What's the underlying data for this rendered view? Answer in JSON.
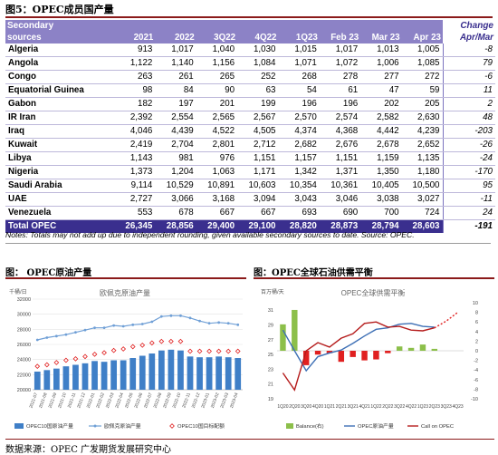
{
  "figure5_title": "图5：OPEC成员国产量",
  "table": {
    "header": {
      "secondary": "Secondary",
      "sources": "sources",
      "change": "Change",
      "change_sub": "Apr/Mar",
      "cols": [
        "2021",
        "2022",
        "3Q22",
        "4Q22",
        "1Q23",
        "Feb 23",
        "Mar 23",
        "Apr 23"
      ]
    },
    "rows": [
      {
        "name": "Algeria",
        "values": [
          "913",
          "1,017",
          "1,040",
          "1,030",
          "1,015",
          "1,017",
          "1,013",
          "1,005"
        ],
        "change": "-8"
      },
      {
        "name": "Angola",
        "values": [
          "1,122",
          "1,140",
          "1,156",
          "1,084",
          "1,071",
          "1,072",
          "1,006",
          "1,085"
        ],
        "change": "79"
      },
      {
        "name": "Congo",
        "values": [
          "263",
          "261",
          "265",
          "252",
          "268",
          "278",
          "277",
          "272"
        ],
        "change": "-6"
      },
      {
        "name": "Equatorial Guinea",
        "values": [
          "98",
          "84",
          "90",
          "63",
          "54",
          "61",
          "47",
          "59"
        ],
        "change": "11"
      },
      {
        "name": "Gabon",
        "values": [
          "182",
          "197",
          "201",
          "199",
          "196",
          "196",
          "202",
          "205"
        ],
        "change": "2"
      },
      {
        "name": "IR Iran",
        "values": [
          "2,392",
          "2,554",
          "2,565",
          "2,567",
          "2,570",
          "2,574",
          "2,582",
          "2,630"
        ],
        "change": "48"
      },
      {
        "name": "Iraq",
        "values": [
          "4,046",
          "4,439",
          "4,522",
          "4,505",
          "4,374",
          "4,368",
          "4,442",
          "4,239"
        ],
        "change": "-203"
      },
      {
        "name": "Kuwait",
        "values": [
          "2,419",
          "2,704",
          "2,801",
          "2,712",
          "2,682",
          "2,676",
          "2,678",
          "2,652"
        ],
        "change": "-26"
      },
      {
        "name": "Libya",
        "values": [
          "1,143",
          "981",
          "976",
          "1,151",
          "1,157",
          "1,151",
          "1,159",
          "1,135"
        ],
        "change": "-24"
      },
      {
        "name": "Nigeria",
        "values": [
          "1,373",
          "1,204",
          "1,063",
          "1,171",
          "1,342",
          "1,371",
          "1,350",
          "1,180"
        ],
        "change": "-170"
      },
      {
        "name": "Saudi Arabia",
        "values": [
          "9,114",
          "10,529",
          "10,891",
          "10,603",
          "10,354",
          "10,361",
          "10,405",
          "10,500"
        ],
        "change": "95"
      },
      {
        "name": "UAE",
        "values": [
          "2,727",
          "3,066",
          "3,168",
          "3,094",
          "3,043",
          "3,046",
          "3,038",
          "3,027"
        ],
        "change": "-11"
      },
      {
        "name": "Venezuela",
        "values": [
          "553",
          "678",
          "667",
          "667",
          "693",
          "690",
          "700",
          "724"
        ],
        "change": "24"
      }
    ],
    "total": {
      "name": "Total  OPEC",
      "values": [
        "26,345",
        "28,856",
        "29,400",
        "29,100",
        "28,820",
        "28,873",
        "28,794",
        "28,603"
      ],
      "change": "-191"
    },
    "note": "Notes: Totals may not add up due to independent rounding, given available secondary sources to date. Source: OPEC."
  },
  "left_panel_title": "图：  OPEC原油产量",
  "right_panel_title": "图：OPEC全球石油供需平衡",
  "source_text": "数据来源：OPEC  广发期货发展研究中心",
  "colors": {
    "purple": "#3a2f8e",
    "header": "#8c82c6",
    "blue": "#3f7fc7",
    "red": "#e02020",
    "green": "#8cbf4a",
    "blue_dark": "#3d6fb5"
  },
  "chart_data": [
    {
      "type": "bar",
      "title": "欧佩克原油产量",
      "ylabel": "千桶/日",
      "ylim": [
        20000,
        32000
      ],
      "yticks": [
        20000,
        22000,
        24000,
        26000,
        28000,
        30000,
        32000
      ],
      "categories": [
        "2021-07",
        "2021-08",
        "2021-09",
        "2021-10",
        "2021-11",
        "2021-12",
        "2022-01",
        "2022-02",
        "2022-03",
        "2022-04",
        "2022-05",
        "2022-06",
        "2022-07",
        "2022-08",
        "2022-09",
        "2022-10",
        "2022-11",
        "2022-12",
        "2023-01",
        "2023-02",
        "2023-03",
        "2023-04"
      ],
      "series": [
        {
          "name": "OPEC10国原油产量",
          "kind": "bar",
          "values": [
            22400,
            22600,
            22800,
            23100,
            23300,
            23500,
            23800,
            23700,
            23900,
            23900,
            24200,
            24500,
            24800,
            25200,
            25300,
            25200,
            24400,
            24300,
            24300,
            24400,
            24300,
            24200
          ]
        },
        {
          "name": "欧佩克原油产量",
          "kind": "line",
          "values": [
            26600,
            26900,
            27100,
            27300,
            27600,
            27900,
            28200,
            28200,
            28500,
            28400,
            28600,
            28700,
            29000,
            29700,
            29800,
            29800,
            29500,
            29100,
            28800,
            28900,
            28800,
            28600
          ]
        },
        {
          "name": "OPEC10国目标配额",
          "kind": "marker",
          "values": [
            23100,
            23300,
            23600,
            23900,
            24100,
            24400,
            24700,
            24900,
            25200,
            25400,
            25700,
            25900,
            26200,
            26400,
            26400,
            26400,
            25100,
            25100,
            25100,
            25100,
            25100,
            25100
          ]
        }
      ]
    },
    {
      "type": "bar",
      "title": "OPEC全球供需平衡",
      "ylabel": "百万桶/天",
      "ylim_left": [
        19,
        32
      ],
      "yticks_left": [
        19,
        21,
        23,
        25,
        27,
        29,
        31
      ],
      "ylim_right": [
        -10,
        10
      ],
      "yticks_right": [
        -10,
        -8,
        -6,
        -4,
        -2,
        0,
        2,
        4,
        6,
        8,
        10
      ],
      "categories": [
        "1Q20",
        "2Q20",
        "3Q20",
        "4Q20",
        "1Q21",
        "2Q21",
        "3Q21",
        "4Q21",
        "1Q22",
        "2Q22",
        "3Q22",
        "4Q22",
        "1Q23",
        "2Q23",
        "3Q23",
        "4Q23"
      ],
      "series": [
        {
          "name": "Balance(右)",
          "kind": "bar",
          "values": [
            5.5,
            8.5,
            -3.0,
            -0.8,
            -0.5,
            -2.3,
            -1.3,
            -2.0,
            -1.8,
            -0.5,
            0.9,
            0.6,
            1.3,
            0.4,
            null,
            null
          ]
        },
        {
          "name": "OPEC原油产量",
          "kind": "line",
          "values": [
            28.3,
            25.5,
            22.8,
            24.7,
            25.2,
            25.6,
            26.5,
            27.5,
            28.4,
            28.6,
            29.1,
            29.2,
            28.8,
            28.7,
            null,
            null
          ]
        },
        {
          "name": "Call on OPEC",
          "kind": "line",
          "values": [
            22.5,
            20.2,
            25.5,
            26.6,
            26.0,
            27.2,
            27.8,
            29.2,
            29.4,
            28.7,
            28.8,
            28.3,
            28.2,
            28.6,
            29.5,
            30.7
          ]
        }
      ]
    }
  ]
}
